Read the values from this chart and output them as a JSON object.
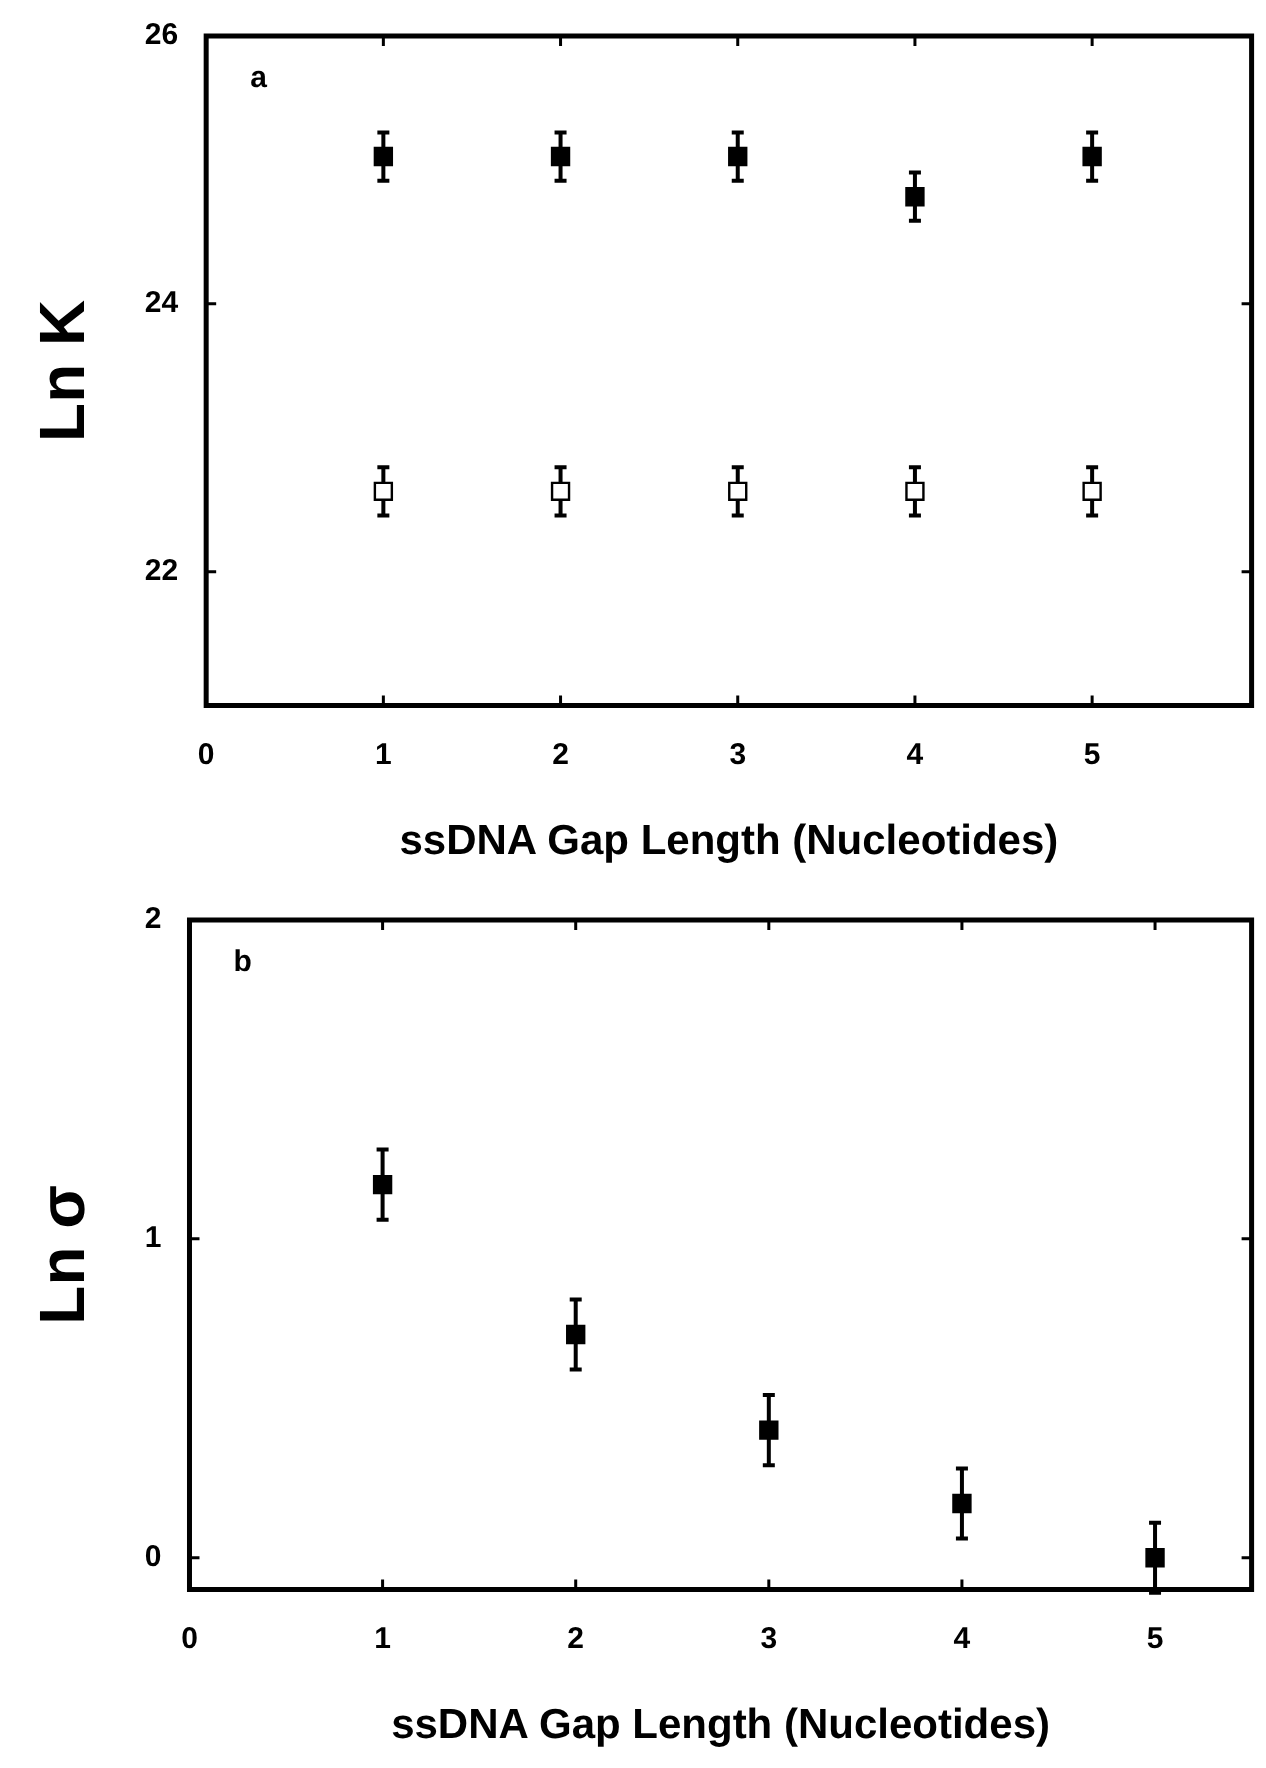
{
  "chart_data": [
    {
      "type": "scatter",
      "ylabel": "Ln K",
      "xlabel": "ssDNA Gap Length (Nucleotides)",
      "annotations": [
        "a"
      ],
      "marker": "square",
      "grid": false,
      "xlim": [
        0,
        5.9
      ],
      "xticks": [
        0,
        1,
        2,
        3,
        4,
        5
      ],
      "ylim": [
        21,
        26
      ],
      "yticks": [
        {
          "value": 22,
          "label": "22"
        },
        {
          "value": 24,
          "label": "24"
        },
        {
          "value": 26,
          "label": "26"
        }
      ],
      "series": [
        {
          "color": "#000000",
          "x": [
            1,
            2,
            3,
            4,
            5
          ],
          "values": [
            25.1,
            25.1,
            25.1,
            24.8,
            25.1
          ],
          "errors": [
            0.18,
            0.18,
            0.18,
            0.18,
            0.18
          ]
        },
        {
          "color": "#ffffff",
          "x": [
            1,
            2,
            3,
            4,
            5
          ],
          "values": [
            22.6,
            22.6,
            22.6,
            22.6,
            22.6
          ],
          "errors": [
            0.18,
            0.18,
            0.18,
            0.18,
            0.18
          ]
        }
      ]
    },
    {
      "type": "scatter",
      "ylabel": "Ln σ",
      "xlabel": "ssDNA Gap Length (Nucleotides)",
      "annotations": [
        "b"
      ],
      "marker": "square",
      "grid": false,
      "xlim": [
        0,
        5.5
      ],
      "xticks": [
        0,
        1,
        2,
        3,
        4,
        5
      ],
      "ylim": [
        -0.1,
        2
      ],
      "yticks": [
        0,
        1,
        2
      ],
      "series": [
        {
          "color": "#000000",
          "x": [
            1,
            2,
            3,
            4,
            5
          ],
          "values": [
            1.17,
            0.7,
            0.4,
            0.17,
            0
          ],
          "errors": [
            0.11,
            0.11,
            0.11,
            0.11,
            0.11
          ]
        }
      ]
    }
  ]
}
